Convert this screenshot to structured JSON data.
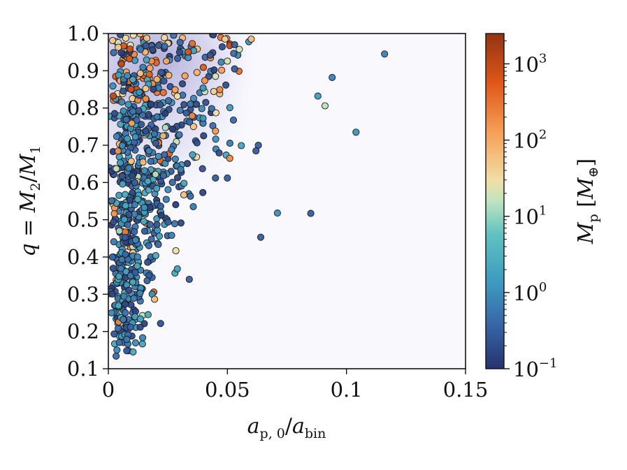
{
  "chart_data": {
    "type": "scatter",
    "xlabel": "a_{p,0}/a_{bin}",
    "ylabel": "q = M_2/M_1",
    "colorbar_label": "M_p [M_⊕]",
    "xlim": [
      0,
      0.15
    ],
    "ylim": [
      0.1,
      1.0
    ],
    "x_ticks": [
      "0",
      "0.05",
      "0.1",
      "0.15"
    ],
    "y_ticks": [
      "0.1",
      "0.2",
      "0.3",
      "0.4",
      "0.5",
      "0.6",
      "0.7",
      "0.8",
      "0.9",
      "1.0"
    ],
    "colorbar": {
      "scale": "log",
      "min": 0.1,
      "max": 2500,
      "ticks": [
        {
          "value": 0.1,
          "base": "10",
          "exp": "−1"
        },
        {
          "value": 1,
          "base": "10",
          "exp": "0"
        },
        {
          "value": 10,
          "base": "10",
          "exp": "1"
        },
        {
          "value": 100,
          "base": "10",
          "exp": "2"
        },
        {
          "value": 1000,
          "base": "10",
          "exp": "3"
        }
      ],
      "colormap": [
        "#26336e",
        "#3865a8",
        "#3d9bbf",
        "#5fc2c0",
        "#bfe3c0",
        "#f1dfa6",
        "#f6a25a",
        "#e0581a",
        "#933311"
      ]
    },
    "density_background": true,
    "grid": false,
    "points_outliers": [
      {
        "x": 0.116,
        "y": 0.945,
        "m": 0.7
      },
      {
        "x": 0.094,
        "y": 0.882,
        "m": 0.7
      },
      {
        "x": 0.088,
        "y": 0.832,
        "m": 1.5
      },
      {
        "x": 0.091,
        "y": 0.806,
        "m": 15
      },
      {
        "x": 0.104,
        "y": 0.735,
        "m": 1.2
      },
      {
        "x": 0.071,
        "y": 0.518,
        "m": 1.0
      },
      {
        "x": 0.085,
        "y": 0.517,
        "m": 0.3
      },
      {
        "x": 0.064,
        "y": 0.453,
        "m": 0.3
      },
      {
        "x": 0.063,
        "y": 0.7,
        "m": 0.3
      },
      {
        "x": 0.062,
        "y": 0.685,
        "m": 0.3
      },
      {
        "x": 0.059,
        "y": 0.978,
        "m": 1.2
      },
      {
        "x": 0.06,
        "y": 0.985,
        "m": 60
      },
      {
        "x": 0.053,
        "y": 0.97,
        "m": 0.3
      },
      {
        "x": 0.05,
        "y": 0.926,
        "m": 20
      },
      {
        "x": 0.045,
        "y": 0.885,
        "m": 20
      },
      {
        "x": 0.053,
        "y": 0.905,
        "m": 0.3
      },
      {
        "x": 0.049,
        "y": 0.985,
        "m": 40
      },
      {
        "x": 0.045,
        "y": 0.738,
        "m": 150
      },
      {
        "x": 0.05,
        "y": 0.612,
        "m": 0.3
      },
      {
        "x": 0.045,
        "y": 0.612,
        "m": 0.3
      },
      {
        "x": 0.051,
        "y": 0.665,
        "m": 200
      },
      {
        "x": 0.034,
        "y": 0.34,
        "m": 0.3
      }
    ],
    "cloud": {
      "count": 780,
      "seed": 7
    }
  }
}
